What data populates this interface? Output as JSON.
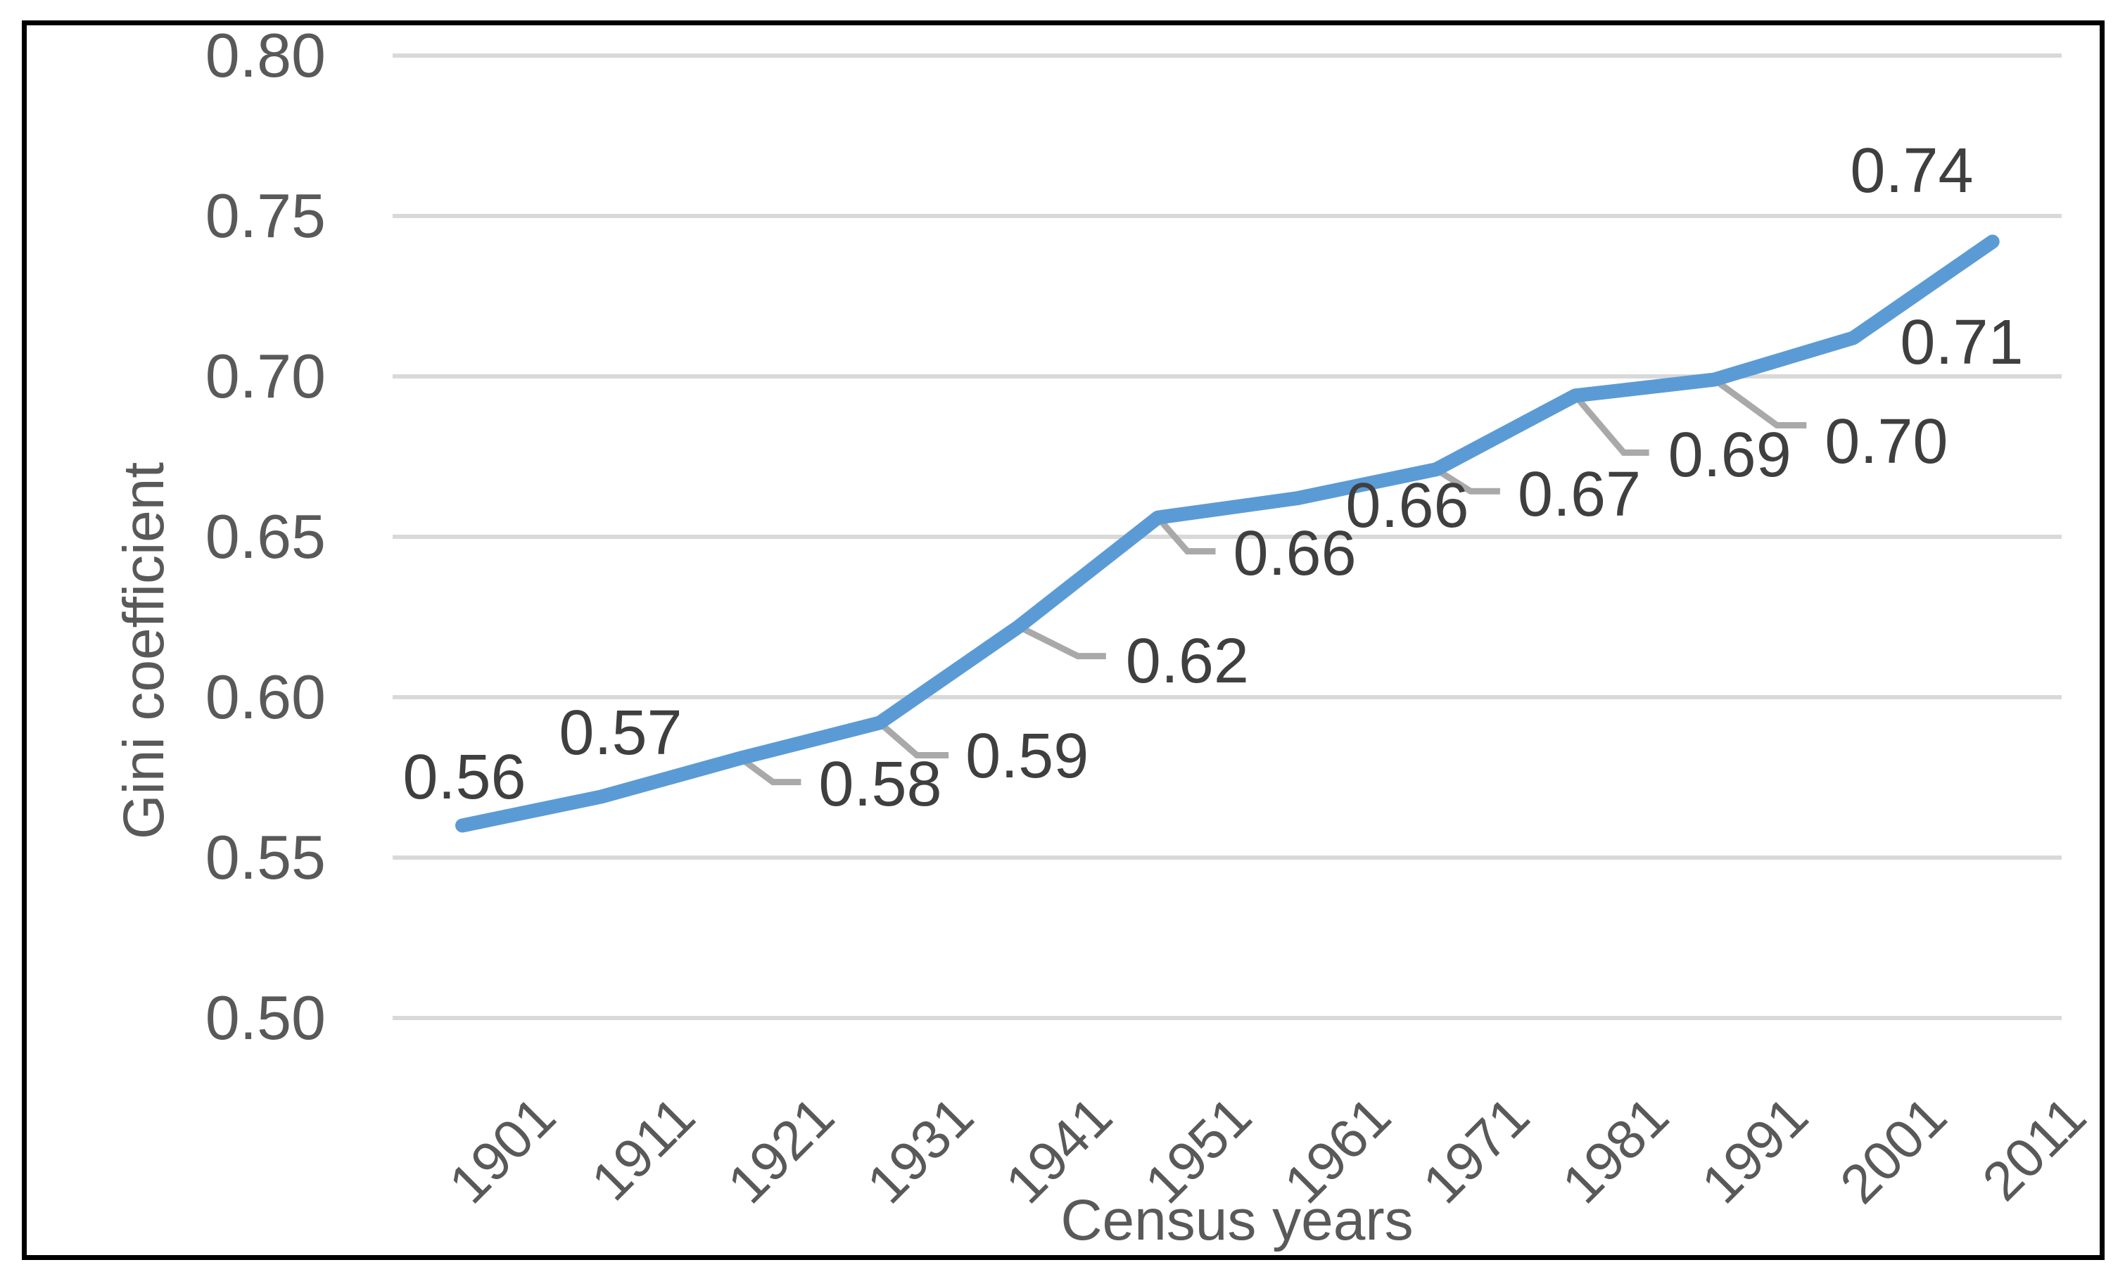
{
  "chart": {
    "y_axis": {
      "title": "Gini coefficient",
      "tick_labels": [
        "0.80",
        "0.75",
        "0.70",
        "0.65",
        "0.60",
        "0.55",
        "0.50"
      ],
      "min": 0.5,
      "max": 0.8,
      "step": 0.05
    },
    "x_axis": {
      "title": "Census years",
      "categories": [
        "1901",
        "1911",
        "1921",
        "1931",
        "1941",
        "1951",
        "1961",
        "1971",
        "1981",
        "1991",
        "2001",
        "2011"
      ]
    },
    "series": {
      "data_labels": [
        "0.56",
        "0.57",
        "0.58",
        "0.59",
        "0.62",
        "0.66",
        "0.66",
        "0.67",
        "0.69",
        "0.70",
        "0.71",
        "0.74"
      ],
      "line_color": "#5B9BD5",
      "leader_line_color": "#A9A9A9",
      "gridline_color": "#D9D9D9",
      "axis_text_color": "#595959",
      "data_label_color": "#3F3F3F"
    }
  },
  "chart_data": {
    "type": "line",
    "categories": [
      "1901",
      "1911",
      "1921",
      "1931",
      "1941",
      "1951",
      "1961",
      "1971",
      "1981",
      "1991",
      "2001",
      "2011"
    ],
    "values": [
      0.56,
      0.57,
      0.58,
      0.59,
      0.62,
      0.66,
      0.66,
      0.67,
      0.69,
      0.7,
      0.71,
      0.74
    ],
    "plotted_values": [
      0.56,
      0.569,
      0.581,
      0.592,
      0.622,
      0.656,
      0.662,
      0.671,
      0.694,
      0.699,
      0.712,
      0.742
    ],
    "title": "",
    "xlabel": "Census years",
    "ylabel": "Gini coefficient",
    "ylim": [
      0.5,
      0.8
    ],
    "ytick_step": 0.05,
    "grid": "horizontal",
    "legend": "none",
    "series_color": "#5B9BD5"
  }
}
